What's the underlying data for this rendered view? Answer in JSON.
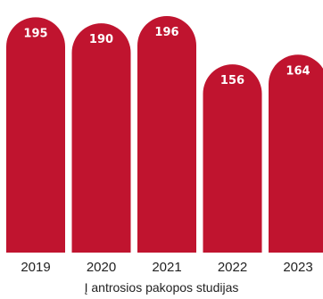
{
  "chart_data": {
    "type": "bar",
    "categories": [
      "2019",
      "2020",
      "2021",
      "2022",
      "2023"
    ],
    "values": [
      195,
      190,
      196,
      156,
      164
    ],
    "title": "",
    "xlabel": "Į antrosios pakopos studijas",
    "ylabel": "",
    "grid": false,
    "legend": "none",
    "bar_color": "#c0142f",
    "value_label_color": "#ffffff"
  }
}
